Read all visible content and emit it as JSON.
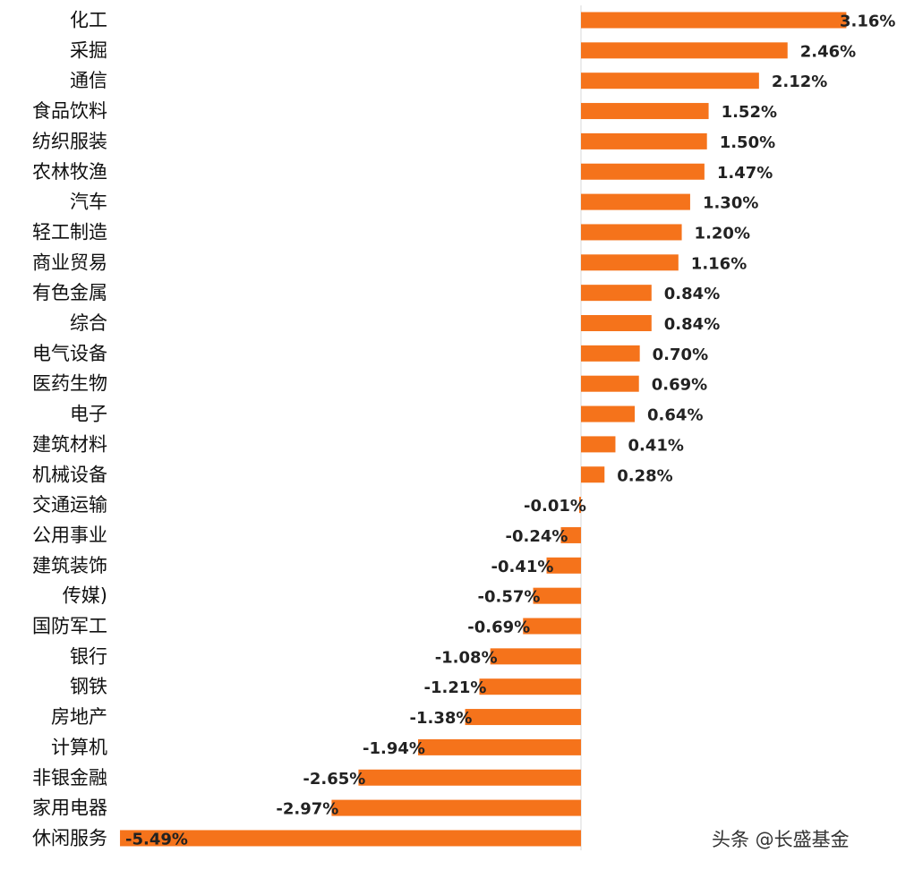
{
  "chart_data": {
    "type": "bar",
    "orientation": "horizontal",
    "title": "",
    "xlabel": "",
    "ylabel": "",
    "grid": false,
    "legend": "none",
    "bar_color": "#F5731B",
    "categories": [
      "化工",
      "采掘",
      "通信",
      "食品饮料",
      "纺织服装",
      "农林牧渔",
      "汽车",
      "轻工制造",
      "商业贸易",
      "有色金属",
      "综合",
      "电气设备",
      "医药生物",
      "电子",
      "建筑材料",
      "机械设备",
      "交通运输",
      "公用事业",
      "建筑装饰",
      "传媒)",
      "国防军工",
      "银行",
      "钢铁",
      "房地产",
      "计算机",
      "非银金融",
      "家用电器",
      "休闲服务"
    ],
    "values": [
      3.16,
      2.46,
      2.12,
      1.52,
      1.5,
      1.47,
      1.3,
      1.2,
      1.16,
      0.84,
      0.84,
      0.7,
      0.69,
      0.64,
      0.41,
      0.28,
      -0.01,
      -0.24,
      -0.41,
      -0.57,
      -0.69,
      -1.08,
      -1.21,
      -1.38,
      -1.94,
      -2.65,
      -2.97,
      -5.49
    ],
    "value_labels": [
      "3.16%",
      "2.46%",
      "2.12%",
      "1.52%",
      "1.50%",
      "1.47%",
      "1.30%",
      "1.20%",
      "1.16%",
      "0.84%",
      "0.84%",
      "0.70%",
      "0.69%",
      "0.64%",
      "0.41%",
      "0.28%",
      "-0.01%",
      "-0.24%",
      "-0.41%",
      "-0.57%",
      "-0.69%",
      "-1.08%",
      "-1.21%",
      "-1.38%",
      "-1.94%",
      "-2.65%",
      "-2.97%",
      "-5.49%"
    ]
  },
  "watermark": "头条 @长盛基金"
}
